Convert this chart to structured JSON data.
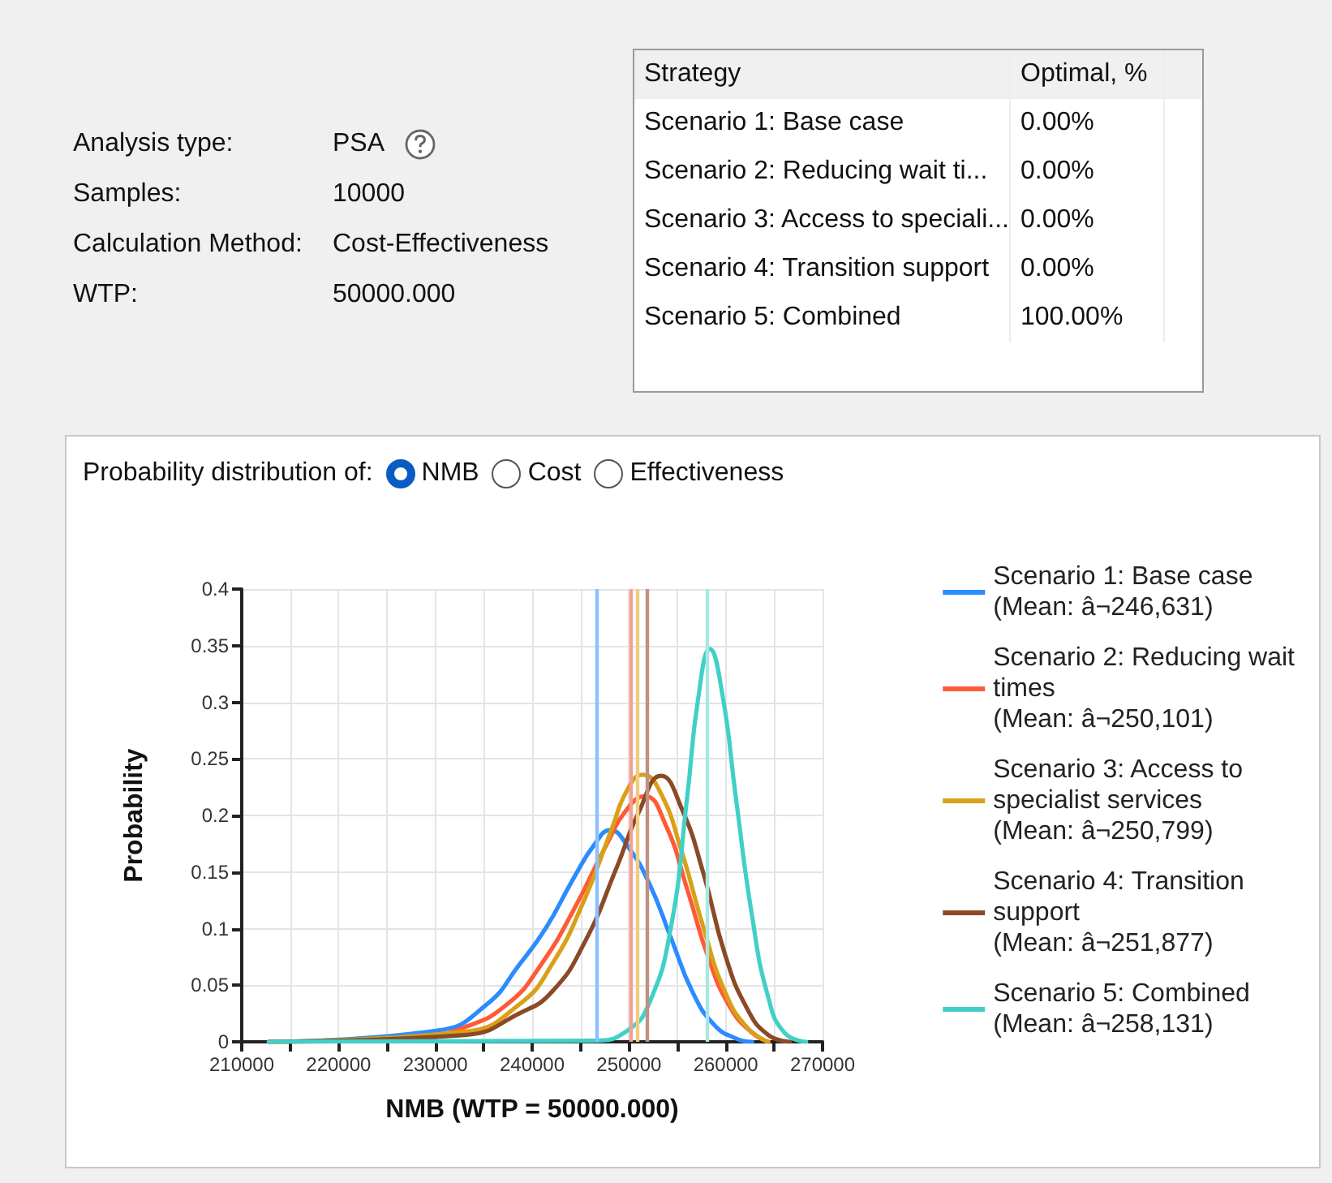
{
  "chart_data": [
    {
      "type": "other",
      "annotations": [
        "Analysis type:",
        "PSA",
        "Samples:",
        "10000",
        "Calculation Method:",
        "Cost-Effectiveness",
        "WTP:",
        "50000.000"
      ]
    },
    {
      "type": "other",
      "annotations": [
        "Strategy",
        "Optimal, %",
        "Scenario 1: Base case",
        "0.00%",
        "Scenario 2: Reducing wait ti...",
        "0.00%",
        "Scenario 3: Access to speciali...",
        "0.00%",
        "Scenario 4: Transition support",
        "0.00%",
        "Scenario 5: Combined",
        "100.00%"
      ]
    },
    {
      "type": "line",
      "annotations": [
        "Probability distribution of:",
        "NMB",
        "Cost",
        "Effectiveness"
      ],
      "xlabel": "NMB (WTP = 50000.000)",
      "ylabel": "Probability",
      "xlim": [
        210000,
        270000
      ],
      "xticks": [
        210000,
        {
          "value": 215000,
          "label": null
        },
        220000,
        {
          "value": 225000,
          "label": null
        },
        230000,
        {
          "value": 235000,
          "label": null
        },
        240000,
        {
          "value": 245000,
          "label": null
        },
        250000,
        {
          "value": 255000,
          "label": null
        },
        260000,
        {
          "value": 265000,
          "label": null
        },
        270000
      ],
      "ylim": [
        0,
        0.4
      ],
      "yticks": [
        0,
        0.05,
        0.1,
        0.15,
        0.2,
        0.25,
        0.3,
        0.35,
        0.4
      ],
      "grid": true,
      "legend": "right",
      "marker": "none",
      "line_style": "solid",
      "series": [
        {
          "name": "Scenario 1: Base case\n(Mean: â¬246,631)",
          "color": "#2b8cff",
          "x": [
            212800,
            230260,
            235300,
            238660,
            241450,
            244250,
            246490,
            248060,
            249850,
            252090,
            254330,
            256570,
            258800,
            261040,
            262720
          ],
          "values": [
            0,
            0.01,
            0.033,
            0.068,
            0.101,
            0.144,
            0.175,
            0.187,
            0.173,
            0.14,
            0.092,
            0.044,
            0.015,
            0.003,
            0
          ]
        },
        {
          "name": "Scenario 2: Reducing wait times\n(Mean: â¬250,101)",
          "color": "#ff5a36",
          "x": [
            212800,
            227460,
            233060,
            237540,
            240900,
            244250,
            247610,
            249850,
            251640,
            253770,
            256010,
            258250,
            260490,
            262720,
            264400
          ],
          "values": [
            0,
            0.002,
            0.013,
            0.034,
            0.068,
            0.116,
            0.173,
            0.206,
            0.217,
            0.192,
            0.135,
            0.073,
            0.03,
            0.008,
            0
          ]
        },
        {
          "name": "Scenario 3: Access to specialist services\n(Mean: â¬250,799)",
          "color": "#d9a017",
          "x": [
            212800,
            233060,
            238660,
            242020,
            245370,
            248170,
            249850,
            251420,
            253210,
            255450,
            257690,
            259930,
            262170,
            264400
          ],
          "values": [
            0,
            0.009,
            0.033,
            0.068,
            0.125,
            0.187,
            0.223,
            0.236,
            0.221,
            0.168,
            0.101,
            0.044,
            0.013,
            0
          ]
        },
        {
          "name": "Scenario 4: Transition support\n(Mean: â¬251,877)",
          "color": "#8b4a26",
          "x": [
            212800,
            233060,
            238660,
            242020,
            245370,
            248730,
            250970,
            253320,
            255450,
            257690,
            259930,
            262170,
            264400,
            266640
          ],
          "values": [
            0,
            0.006,
            0.025,
            0.044,
            0.087,
            0.154,
            0.202,
            0.235,
            0.206,
            0.149,
            0.077,
            0.03,
            0.006,
            0
          ]
        },
        {
          "name": "Scenario 5: Combined\n(Mean: â¬258,131)",
          "color": "#40d0c8",
          "x": [
            212800,
            246490,
            249850,
            252090,
            254330,
            256010,
            257130,
            258360,
            259650,
            261040,
            262720,
            264400,
            266080,
            268320
          ],
          "values": [
            0,
            0.001,
            0.01,
            0.034,
            0.101,
            0.216,
            0.302,
            0.347,
            0.307,
            0.216,
            0.111,
            0.039,
            0.008,
            0
          ]
        }
      ],
      "ref_lines": [
        {
          "axis": "x",
          "value": 246631,
          "color": "#8cc0ff"
        },
        {
          "axis": "x",
          "value": 250101,
          "color": "#f4a090"
        },
        {
          "axis": "x",
          "value": 250799,
          "color": "#f0cc80"
        },
        {
          "axis": "x",
          "value": 251877,
          "color": "#c09080"
        },
        {
          "axis": "x",
          "value": 258131,
          "color": "#a8e8e0"
        }
      ]
    }
  ]
}
